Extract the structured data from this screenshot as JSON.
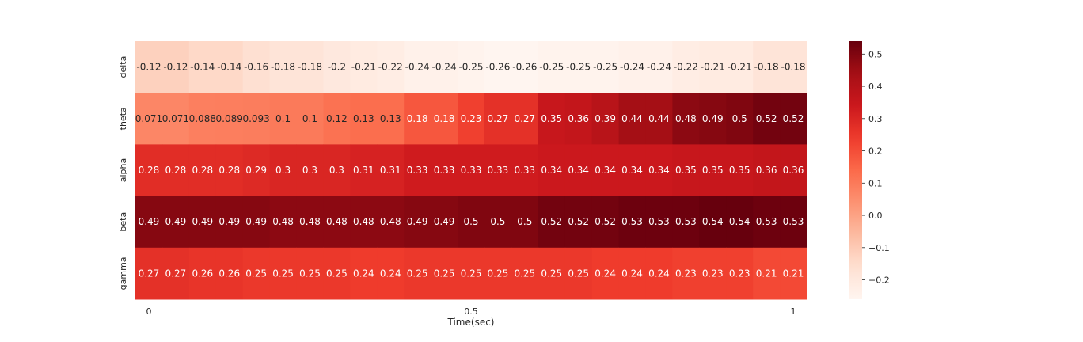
{
  "chart_data": {
    "type": "heatmap",
    "title": "",
    "xlabel": "Time(sec)",
    "ylabel": "",
    "rows": [
      "delta",
      "theta",
      "alpha",
      "beta",
      "gamma"
    ],
    "x_ticks": [
      {
        "label": "0",
        "col": 0
      },
      {
        "label": "0.5",
        "col": 12
      },
      {
        "label": "1",
        "col": 24
      }
    ],
    "values": [
      [
        -0.12,
        -0.12,
        -0.14,
        -0.14,
        -0.16,
        -0.18,
        -0.18,
        -0.2,
        -0.21,
        -0.22,
        -0.24,
        -0.24,
        -0.25,
        -0.26,
        -0.26,
        -0.25,
        -0.25,
        -0.25,
        -0.24,
        -0.24,
        -0.22,
        -0.21,
        -0.21,
        -0.18,
        -0.18
      ],
      [
        0.071,
        0.071,
        0.088,
        0.089,
        0.093,
        0.1,
        0.1,
        0.12,
        0.13,
        0.13,
        0.18,
        0.18,
        0.23,
        0.27,
        0.27,
        0.35,
        0.36,
        0.39,
        0.44,
        0.44,
        0.48,
        0.49,
        0.5,
        0.52,
        0.52
      ],
      [
        0.28,
        0.28,
        0.28,
        0.28,
        0.29,
        0.3,
        0.3,
        0.3,
        0.31,
        0.31,
        0.33,
        0.33,
        0.33,
        0.33,
        0.33,
        0.34,
        0.34,
        0.34,
        0.34,
        0.34,
        0.35,
        0.35,
        0.35,
        0.36,
        0.36
      ],
      [
        0.49,
        0.49,
        0.49,
        0.49,
        0.49,
        0.48,
        0.48,
        0.48,
        0.48,
        0.48,
        0.49,
        0.49,
        0.5,
        0.5,
        0.5,
        0.52,
        0.52,
        0.52,
        0.53,
        0.53,
        0.53,
        0.54,
        0.54,
        0.53,
        0.53
      ],
      [
        0.27,
        0.27,
        0.26,
        0.26,
        0.25,
        0.25,
        0.25,
        0.25,
        0.24,
        0.24,
        0.25,
        0.25,
        0.25,
        0.25,
        0.25,
        0.25,
        0.25,
        0.24,
        0.24,
        0.24,
        0.23,
        0.23,
        0.23,
        0.21,
        0.21
      ]
    ],
    "colormap": "Reds",
    "vmin": -0.26,
    "vmax": 0.54,
    "colorbar_ticks": [
      0.5,
      0.4,
      0.3,
      0.2,
      0.1,
      0.0,
      -0.1,
      -0.2
    ],
    "colorbar_tick_labels": [
      "0.5",
      "0.4",
      "0.3",
      "0.2",
      "0.1",
      "0.0",
      "−0.1",
      "−0.2"
    ],
    "grid": false,
    "legend": "colorbar-right"
  }
}
